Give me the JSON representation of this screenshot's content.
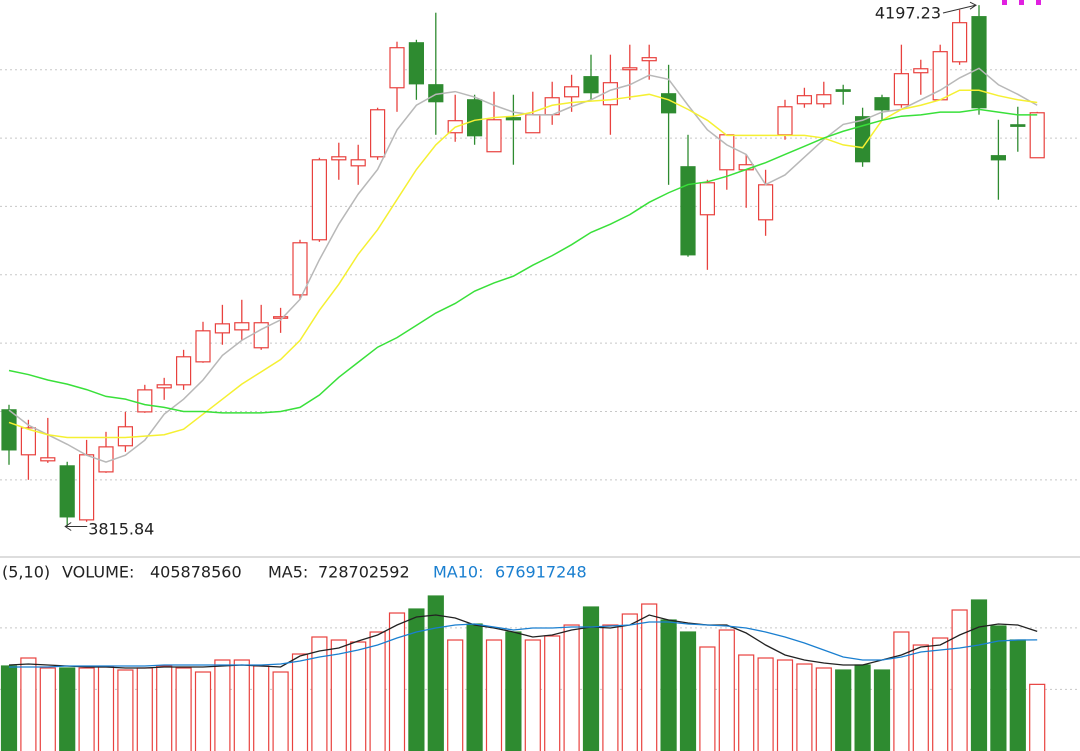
{
  "chart_data": [
    {
      "type": "candlestick",
      "up_color": "#e8413e",
      "down_color": "#2e8b30",
      "ylim": [
        3795,
        4201
      ],
      "yticks": [
        3850,
        3900,
        3950,
        4000,
        4050,
        4100,
        4150
      ],
      "grid": true,
      "open": [
        3901.2,
        3868.3,
        3863.9,
        3860.2,
        3820.7,
        3855.8,
        3874.9,
        3899.7,
        3917.3,
        3919.5,
        3936.3,
        3957.5,
        3959.7,
        3946.6,
        3968.5,
        3985.3,
        4025.6,
        4084.1,
        4079.7,
        4086.3,
        4136.8,
        4169.7,
        4139.0,
        4103.9,
        4128.0,
        4090.0,
        4114.9,
        4103.9,
        4117.1,
        4130.2,
        4144.9,
        4124.4,
        4150.0,
        4156.6,
        4132.4,
        4079.0,
        4043.9,
        4076.8,
        4076.8,
        4040.2,
        4102.4,
        4125.1,
        4125.1,
        4135.3,
        4115.6,
        4129.5,
        4124.4,
        4147.8,
        4128.0,
        4155.8,
        4188.8,
        4087.1,
        4109.7,
        4085.6
      ],
      "high": [
        3904.9,
        3893.9,
        3895.3,
        3863.2,
        3879.2,
        3885.1,
        3899.7,
        3919.5,
        3924.6,
        3945.1,
        3965.6,
        3978.0,
        3981.7,
        3978.0,
        3975.8,
        4025.6,
        4085.6,
        4096.6,
        4095.1,
        4122.2,
        4170.5,
        4171.9,
        4191.7,
        4131.7,
        4131.7,
        4133.9,
        4131.7,
        4133.9,
        4141.2,
        4146.3,
        4161.0,
        4161.0,
        4168.3,
        4168.3,
        4153.6,
        4102.4,
        4069.5,
        4102.4,
        4087.8,
        4076.8,
        4128.0,
        4136.8,
        4141.2,
        4139.0,
        4122.2,
        4131.7,
        4168.3,
        4157.3,
        4168.3,
        4193.9,
        4197.23,
        4113.4,
        4122.9,
        4119.2
      ],
      "low": [
        3861.0,
        3850.0,
        3862.4,
        3815.84,
        3819.3,
        3855.1,
        3870.5,
        3899.0,
        3908.5,
        3915.8,
        3935.6,
        3948.8,
        3952.4,
        3945.1,
        3957.5,
        3981.7,
        4024.1,
        4069.5,
        4065.8,
        4084.1,
        4119.2,
        4128.0,
        4102.4,
        4097.3,
        4095.1,
        4090.0,
        4080.5,
        4103.9,
        4109.7,
        4119.2,
        4128.0,
        4102.4,
        4128.0,
        4142.7,
        4065.8,
        4013.2,
        4003.6,
        4062.2,
        4049.0,
        4028.5,
        4098.8,
        4122.2,
        4122.2,
        4124.4,
        4079.0,
        4113.4,
        4122.2,
        4131.7,
        4128.0,
        4153.6,
        4117.1,
        4054.9,
        4090.0,
        4085.6
      ],
      "close": [
        3871.9,
        3888.0,
        3866.1,
        3822.9,
        3868.3,
        3874.1,
        3888.8,
        3915.8,
        3919.5,
        3940.0,
        3959.0,
        3964.1,
        3964.9,
        3964.9,
        3969.3,
        4023.4,
        4084.1,
        4086.3,
        4084.1,
        4120.7,
        4166.1,
        4139.7,
        4126.6,
        4112.7,
        4101.7,
        4113.4,
        4113.4,
        4117.1,
        4129.5,
        4137.5,
        4133.2,
        4140.5,
        4151.4,
        4158.8,
        4118.5,
        4014.6,
        4067.3,
        4102.4,
        4080.5,
        4065.8,
        4122.9,
        4131.0,
        4131.7,
        4134.6,
        4082.7,
        4120.7,
        4147.1,
        4150.7,
        4163.2,
        4184.4,
        4122.2,
        4084.1,
        4109.0,
        4118.5
      ],
      "series": [
        {
          "color": "#b8b8b8",
          "values": [
            3901,
            3890,
            3883,
            3876,
            3868,
            3863,
            3868,
            3879,
            3898,
            3909,
            3923,
            3941,
            3952,
            3960,
            3967,
            3982,
            4011,
            4037,
            4059,
            4077,
            4106,
            4124,
            4132,
            4134,
            4130,
            4124,
            4119,
            4117,
            4117,
            4123,
            4128,
            4135,
            4139,
            4146,
            4143,
            4124,
            4106,
            4095,
            4088,
            4066,
            4073,
            4086,
            4099,
            4110,
            4113,
            4119,
            4121,
            4128,
            4135,
            4144,
            4151,
            4139,
            4132,
            4124
          ]
        },
        {
          "color": "#f5f032",
          "values": [
            3892,
            3887,
            3883,
            3881,
            3881,
            3881,
            3881,
            3882,
            3883,
            3887,
            3898,
            3909,
            3920,
            3929,
            3938,
            3952,
            3974,
            3993,
            4015,
            4033,
            4055,
            4077,
            4095,
            4108,
            4113,
            4115,
            4116,
            4119,
            4124,
            4126,
            4127,
            4128,
            4130,
            4132,
            4128,
            4121,
            4113,
            4102,
            4102,
            4102,
            4102,
            4102,
            4100,
            4095,
            4093,
            4113,
            4121,
            4124,
            4128,
            4135,
            4135,
            4131,
            4128,
            4126
          ]
        },
        {
          "color": "#39e03a",
          "values": [
            3930,
            3927,
            3923,
            3920,
            3916,
            3911,
            3909,
            3905,
            3903,
            3900,
            3900,
            3899,
            3899,
            3899,
            3900,
            3903,
            3912,
            3925,
            3936,
            3947,
            3954,
            3963,
            3972,
            3979,
            3988,
            3994,
            3999,
            4007,
            4014,
            4022,
            4031,
            4037,
            4044,
            4053,
            4060,
            4066,
            4068,
            4072,
            4077,
            4082,
            4088,
            4094,
            4100,
            4105,
            4109,
            4113,
            4116,
            4117,
            4119,
            4119,
            4121,
            4119,
            4117,
            4117
          ]
        }
      ]
    },
    {
      "type": "bar",
      "params": "(5,10)",
      "ylim": [
        0,
        1011000000
      ],
      "yticks": [
        375000000,
        750000000
      ],
      "grid": true,
      "series": [
        {
          "name": "VOLUME:",
          "type": "bar",
          "values": [
            517700000,
            566400000,
            505500000,
            505500000,
            505500000,
            511600000,
            493300000,
            505500000,
            517700000,
            505500000,
            481100000,
            554200000,
            554200000,
            517700000,
            481100000,
            590700000,
            694300000,
            676000000,
            663800000,
            724700000,
            840400000,
            864800000,
            944000000,
            676000000,
            773400000,
            676000000,
            724700000,
            676000000,
            700400000,
            767300000,
            877000000,
            767300000,
            834300000,
            895200000,
            797800000,
            724700000,
            633400000,
            736900000,
            584600000,
            566400000,
            554200000,
            529800000,
            505500000,
            493300000,
            523700000,
            493300000,
            724700000,
            645500000,
            688200000,
            858700000,
            919600000,
            761300000,
            676000000,
            405878560
          ]
        },
        {
          "name": "MA5:",
          "type": "line",
          "color": "#222222",
          "values": [
            523700000,
            529800000,
            523700000,
            517700000,
            511600000,
            511600000,
            505500000,
            505500000,
            511600000,
            511600000,
            511600000,
            517700000,
            523700000,
            517700000,
            511600000,
            578600000,
            609000000,
            627300000,
            669900000,
            706400000,
            767300000,
            816100000,
            828200000,
            810000000,
            767300000,
            749100000,
            724700000,
            694300000,
            706400000,
            736900000,
            755200000,
            749100000,
            767300000,
            828200000,
            797800000,
            779500000,
            767300000,
            767300000,
            718600000,
            645500000,
            584600000,
            554200000,
            535900000,
            523700000,
            523700000,
            554200000,
            584600000,
            633400000,
            645500000,
            706400000,
            755200000,
            773400000,
            767300000,
            728702592
          ]
        },
        {
          "name": "MA10:",
          "type": "line",
          "color": "#1a7fd0",
          "values": [
            511600000,
            511600000,
            511600000,
            517700000,
            517700000,
            517700000,
            517700000,
            517700000,
            523700000,
            523700000,
            523700000,
            523700000,
            523700000,
            523700000,
            529800000,
            548100000,
            572500000,
            590700000,
            615100000,
            645500000,
            688200000,
            724700000,
            749100000,
            767300000,
            773400000,
            755200000,
            736900000,
            749100000,
            749100000,
            755200000,
            755200000,
            761300000,
            767300000,
            785600000,
            785600000,
            773400000,
            767300000,
            761300000,
            749100000,
            724700000,
            694300000,
            657700000,
            615100000,
            572500000,
            554200000,
            554200000,
            572500000,
            602900000,
            615100000,
            627300000,
            645500000,
            669900000,
            676000000,
            676917248
          ]
        }
      ]
    }
  ]
}
